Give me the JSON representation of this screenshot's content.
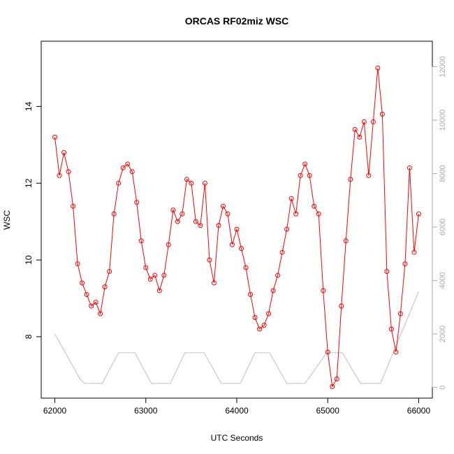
{
  "chart_data": {
    "type": "line",
    "title": "ORCAS RF02miz WSC",
    "xlabel": "UTC Seconds",
    "ylabel": "WSC",
    "xlim": [
      61850,
      66150
    ],
    "ylim": [
      6.4,
      15.7
    ],
    "y2lim": [
      -400,
      12950
    ],
    "x_ticks": [
      62000,
      63000,
      64000,
      65000,
      66000
    ],
    "y_ticks": [
      8,
      10,
      12,
      14
    ],
    "y2_ticks": [
      0,
      2000,
      4000,
      6000,
      8000,
      10000,
      12000
    ],
    "grid": false,
    "series": [
      {
        "role": "wsc",
        "color": "#ff0000",
        "marker": "open-circle",
        "x": [
          62000,
          62050,
          62100,
          62150,
          62200,
          62250,
          62300,
          62350,
          62400,
          62450,
          62500,
          62550,
          62600,
          62650,
          62700,
          62750,
          62800,
          62850,
          62900,
          62950,
          63000,
          63050,
          63100,
          63150,
          63200,
          63250,
          63300,
          63350,
          63400,
          63450,
          63500,
          63550,
          63600,
          63650,
          63700,
          63750,
          63800,
          63850,
          63900,
          63950,
          64000,
          64050,
          64100,
          64150,
          64200,
          64250,
          64300,
          64350,
          64400,
          64450,
          64500,
          64550,
          64600,
          64650,
          64700,
          64750,
          64800,
          64850,
          64900,
          64950,
          65000,
          65050,
          65100,
          65150,
          65200,
          65250,
          65300,
          65350,
          65400,
          65450,
          65500,
          65550,
          65600,
          65650,
          65700,
          65750,
          65800,
          65850,
          65900,
          65950,
          66000
        ],
        "y": [
          13.2,
          12.2,
          12.8,
          12.3,
          11.4,
          9.9,
          9.4,
          9.1,
          8.8,
          8.9,
          8.6,
          9.3,
          9.7,
          11.2,
          12.0,
          12.4,
          12.5,
          12.3,
          11.5,
          10.5,
          9.8,
          9.5,
          9.6,
          9.2,
          9.6,
          10.4,
          11.3,
          11.0,
          11.2,
          12.1,
          12.0,
          11.0,
          10.9,
          12.0,
          10.0,
          9.4,
          10.9,
          11.4,
          11.2,
          10.4,
          10.8,
          10.3,
          9.8,
          9.1,
          8.5,
          8.2,
          8.3,
          8.6,
          9.2,
          9.6,
          10.2,
          10.8,
          11.6,
          11.2,
          12.2,
          12.5,
          12.2,
          11.4,
          11.2,
          9.2,
          7.6,
          6.7,
          6.9,
          8.8,
          10.5,
          12.1,
          13.4,
          13.2,
          13.6,
          12.2,
          13.6,
          15.0,
          13.8,
          9.7,
          8.2,
          7.6,
          8.6,
          9.9,
          12.4,
          10.2,
          11.2
        ]
      },
      {
        "role": "secondary",
        "color": "#c8c8c8",
        "x": [
          62000,
          62280,
          62330,
          62520,
          62700,
          62880,
          63060,
          63270,
          63430,
          63640,
          63830,
          64040,
          64200,
          64360,
          64550,
          64750,
          64990,
          65160,
          65360,
          65580,
          66000
        ],
        "y": [
          2000,
          300,
          150,
          150,
          1300,
          1300,
          150,
          150,
          1300,
          1300,
          150,
          150,
          1300,
          1300,
          150,
          150,
          1300,
          1300,
          150,
          150,
          3600
        ]
      }
    ]
  }
}
